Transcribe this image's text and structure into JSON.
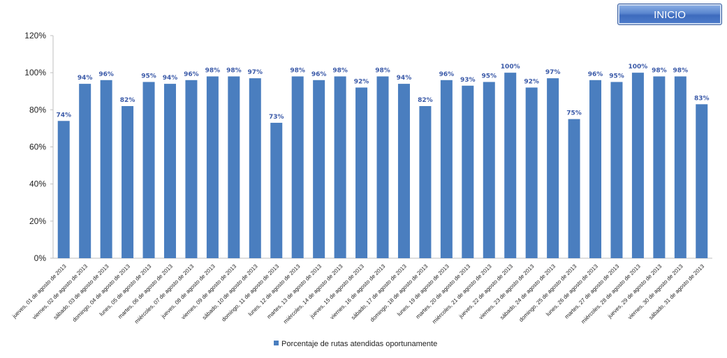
{
  "header": {
    "inicio_label": "INICIO"
  },
  "colors": {
    "bar": "#4a7ebf",
    "label": "#3b5aa8",
    "axis": "#bfbfbf"
  },
  "chart_data": {
    "type": "bar",
    "title": "",
    "xlabel": "",
    "ylabel": "",
    "ylim": [
      0,
      120
    ],
    "yticks": [
      "0%",
      "20%",
      "40%",
      "60%",
      "80%",
      "100%",
      "120%"
    ],
    "grid": false,
    "legend_position": "bottom",
    "categories": [
      "jueves, 01 de agosto de 2013",
      "viernes, 02 de agosto de 2013",
      "sábado, 03 de agosto de 2013",
      "domingo, 04 de agosto de 2013",
      "lunes, 05 de agosto de 2013",
      "martes, 06 de agosto de 2013",
      "miércoles, 07 de agosto de 2013",
      "jueves, 08 de agosto de 2013",
      "viernes, 09 de agosto de 2013",
      "sábado, 10 de agosto de 2013",
      "domingo, 11 de agosto de 2013",
      "lunes, 12 de agosto de 2013",
      "martes, 13 de agosto de 2013",
      "miércoles, 14 de agosto de 2013",
      "jueves, 15 de agosto de 2013",
      "viernes, 16 de agosto de 2013",
      "sábado, 17 de agosto de 2013",
      "domingo, 18 de agosto de 2013",
      "lunes, 19 de agosto de 2013",
      "martes, 20 de agosto de 2013",
      "miércoles, 21 de agosto de 2013",
      "jueves, 22 de agosto de 2013",
      "viernes, 23 de agosto de 2013",
      "sábado, 24 de agosto de 2013",
      "domingo, 25 de agosto de 2013",
      "lunes, 26 de agosto de 2013",
      "martes, 27 de agosto de 2013",
      "miércoles, 28 de agosto de 2013",
      "jueves, 29 de agosto de 2013",
      "viernes, 30 de agosto de 2013",
      "sábado, 31 de agosto de 2013"
    ],
    "series": [
      {
        "name": "Porcentaje de rutas atendidas oportunamente",
        "values": [
          74,
          94,
          96,
          82,
          95,
          94,
          96,
          98,
          98,
          97,
          73,
          98,
          96,
          98,
          92,
          98,
          94,
          82,
          96,
          93,
          95,
          100,
          92,
          97,
          75,
          96,
          95,
          100,
          98,
          98,
          83
        ],
        "labels": [
          "74%",
          "94%",
          "96%",
          "82%",
          "95%",
          "94%",
          "96%",
          "98%",
          "98%",
          "97%",
          "73%",
          "98%",
          "96%",
          "98%",
          "92%",
          "98%",
          "94%",
          "82%",
          "96%",
          "93%",
          "95%",
          "100%",
          "92%",
          "97%",
          "75%",
          "96%",
          "95%",
          "100%",
          "98%",
          "98%",
          "83%"
        ]
      }
    ]
  }
}
